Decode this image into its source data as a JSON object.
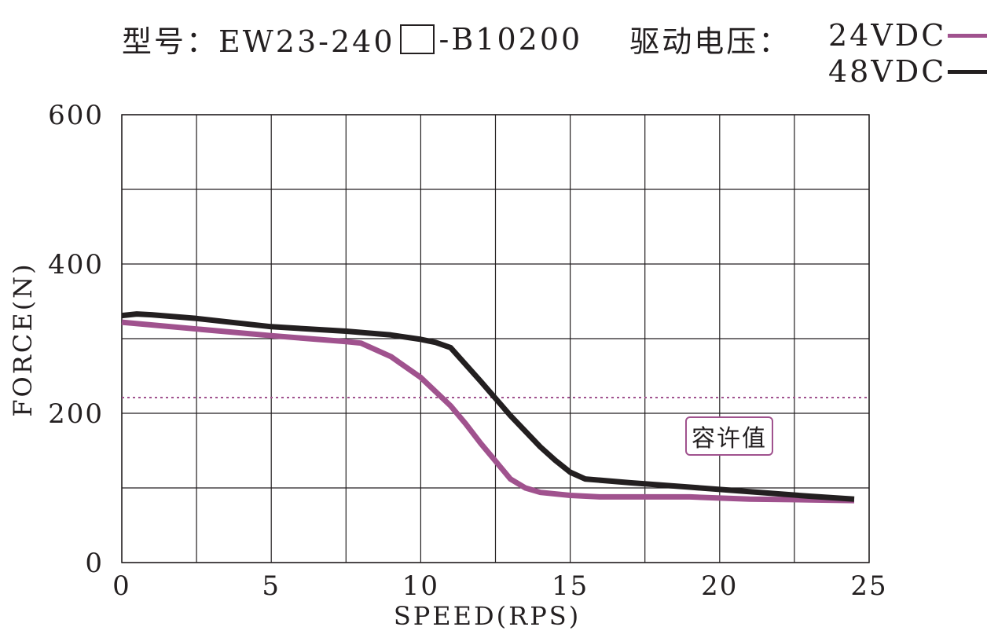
{
  "header": {
    "model_label": "型号：EW23-240",
    "model_suffix": "-B10200",
    "voltage_label": "驱动电压："
  },
  "legend": [
    {
      "label": "24VDC",
      "color": "#a0528e"
    },
    {
      "label": "48VDC",
      "color": "#231f20"
    }
  ],
  "annotation": {
    "label": "容许值"
  },
  "chart_data": {
    "type": "line",
    "xlabel": "SPEED(RPS)",
    "ylabel": "FORCE(N)",
    "xlim": [
      0,
      25
    ],
    "ylim": [
      0,
      600
    ],
    "xticks": [
      0,
      5,
      10,
      15,
      20,
      25
    ],
    "yticks": [
      0,
      200,
      400,
      600
    ],
    "xgrid": [
      0,
      2.5,
      5,
      7.5,
      10,
      12.5,
      15,
      17.5,
      20,
      22.5,
      25
    ],
    "ygrid": [
      0,
      100,
      200,
      300,
      400,
      500,
      600
    ],
    "grid": true,
    "legend_position": "top-right",
    "series": [
      {
        "name": "24VDC",
        "color": "#a0528e",
        "x": [
          0,
          2.5,
          5,
          7.5,
          8,
          9,
          10,
          11,
          11.5,
          12,
          12.5,
          13,
          13.5,
          14,
          15,
          16,
          17,
          19,
          21,
          23,
          24.5
        ],
        "y": [
          322,
          313,
          304,
          296,
          294,
          276,
          248,
          210,
          186,
          160,
          136,
          112,
          100,
          94,
          90,
          88,
          88,
          88,
          85,
          84,
          83
        ]
      },
      {
        "name": "48VDC",
        "color": "#231f20",
        "x": [
          0,
          0.5,
          1,
          2.5,
          5,
          7.5,
          9,
          10,
          10.5,
          11,
          12,
          13,
          14,
          14.5,
          15,
          15.5,
          17,
          19,
          21,
          23,
          24.5
        ],
        "y": [
          331,
          333,
          332,
          327,
          316,
          310,
          305,
          299,
          295,
          288,
          243,
          197,
          155,
          137,
          121,
          112,
          107,
          101,
          95,
          89,
          85
        ]
      }
    ],
    "reference_lines": [
      {
        "y": 221,
        "style": "dotted",
        "color": "#a0528e",
        "label": "容许值"
      }
    ]
  }
}
